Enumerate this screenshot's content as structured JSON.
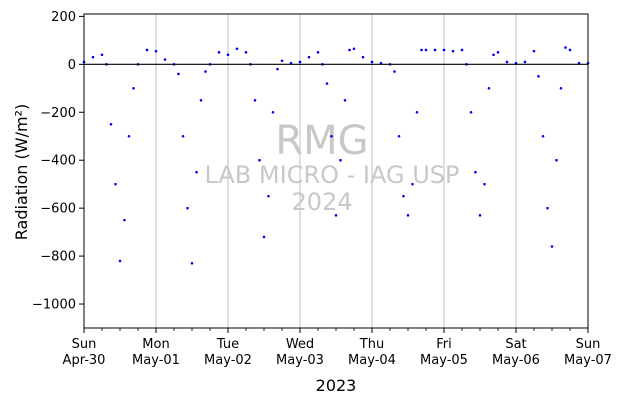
{
  "chart_data": {
    "type": "scatter",
    "xlabel": "2023",
    "ylabel": "Radiation (W/m²)",
    "ylim": [
      -1100,
      210
    ],
    "yticks": [
      200,
      0,
      -200,
      -400,
      -600,
      -800,
      -1000
    ],
    "ytick_labels": [
      "200",
      "0",
      "−200",
      "−400",
      "−600",
      "−800",
      "−1000"
    ],
    "xlim": [
      "2023-04-30",
      "2023-05-07"
    ],
    "xticks": [
      {
        "day": "Sun",
        "date": "Apr-30"
      },
      {
        "day": "Mon",
        "date": "May-01"
      },
      {
        "day": "Tue",
        "date": "May-02"
      },
      {
        "day": "Wed",
        "date": "May-03"
      },
      {
        "day": "Thu",
        "date": "May-04"
      },
      {
        "day": "Fri",
        "date": "May-05"
      },
      {
        "day": "Sat",
        "date": "May-06"
      },
      {
        "day": "Sun",
        "date": "May-07"
      }
    ],
    "grid": "vertical",
    "zero_line": true,
    "marker_color": "#0000ff",
    "watermark": {
      "line1": "RMG",
      "line2": "LAB MICRO - IAG USP",
      "line3": "2024"
    },
    "series": [
      {
        "x": [
          "2023-04-30 00:00",
          "2023-04-30 03:00",
          "2023-04-30 06:00",
          "2023-04-30 07:30",
          "2023-04-30 09:00",
          "2023-04-30 10:30",
          "2023-04-30 12:00",
          "2023-04-30 13:30",
          "2023-04-30 15:00",
          "2023-04-30 16:30",
          "2023-04-30 18:00",
          "2023-04-30 21:00",
          "2023-05-01 00:00",
          "2023-05-01 03:00",
          "2023-05-01 06:00",
          "2023-05-01 07:30",
          "2023-05-01 09:00",
          "2023-05-01 10:30",
          "2023-05-01 12:00",
          "2023-05-01 13:30",
          "2023-05-01 15:00",
          "2023-05-01 16:30",
          "2023-05-01 18:00",
          "2023-05-01 21:00",
          "2023-05-02 00:00",
          "2023-05-02 03:00",
          "2023-05-02 06:00",
          "2023-05-02 07:30",
          "2023-05-02 09:00",
          "2023-05-02 10:30",
          "2023-05-02 12:00",
          "2023-05-02 13:30",
          "2023-05-02 15:00",
          "2023-05-02 16:30",
          "2023-05-02 18:00",
          "2023-05-02 21:00",
          "2023-05-03 00:00",
          "2023-05-03 03:00",
          "2023-05-03 06:00",
          "2023-05-03 07:30",
          "2023-05-03 09:00",
          "2023-05-03 10:30",
          "2023-05-03 12:00",
          "2023-05-03 13:30",
          "2023-05-03 15:00",
          "2023-05-03 16:30",
          "2023-05-03 18:00",
          "2023-05-03 21:00",
          "2023-05-04 00:00",
          "2023-05-04 03:00",
          "2023-05-04 06:00",
          "2023-05-04 07:30",
          "2023-05-04 09:00",
          "2023-05-04 10:30",
          "2023-05-04 12:00",
          "2023-05-04 13:30",
          "2023-05-04 15:00",
          "2023-05-04 16:30",
          "2023-05-04 18:00",
          "2023-05-04 21:00",
          "2023-05-05 00:00",
          "2023-05-05 03:00",
          "2023-05-05 06:00",
          "2023-05-05 07:30",
          "2023-05-05 09:00",
          "2023-05-05 10:30",
          "2023-05-05 12:00",
          "2023-05-05 13:30",
          "2023-05-05 15:00",
          "2023-05-05 16:30",
          "2023-05-05 18:00",
          "2023-05-05 21:00",
          "2023-05-06 00:00",
          "2023-05-06 03:00",
          "2023-05-06 06:00",
          "2023-05-06 07:30",
          "2023-05-06 09:00",
          "2023-05-06 10:30",
          "2023-05-06 12:00",
          "2023-05-06 13:30",
          "2023-05-06 15:00",
          "2023-05-06 16:30",
          "2023-05-06 18:00",
          "2023-05-06 21:00",
          "2023-05-07 00:00"
        ],
        "y": [
          10,
          30,
          40,
          0,
          -250,
          -500,
          -820,
          -650,
          -300,
          -100,
          0,
          60,
          55,
          20,
          0,
          -40,
          -300,
          -600,
          -830,
          -450,
          -150,
          -30,
          0,
          50,
          40,
          65,
          50,
          0,
          -150,
          -400,
          -720,
          -550,
          -200,
          -20,
          15,
          5,
          10,
          30,
          50,
          0,
          -80,
          -300,
          -630,
          -400,
          -150,
          60,
          65,
          30,
          10,
          5,
          0,
          -30,
          -300,
          -550,
          -630,
          -500,
          -200,
          60,
          60,
          60,
          60,
          55,
          60,
          0,
          -200,
          -450,
          -630,
          -500,
          -100,
          40,
          50,
          10,
          5,
          10,
          55,
          -50,
          -300,
          -600,
          -760,
          -400,
          -100,
          70,
          60,
          5,
          5
        ]
      }
    ]
  }
}
